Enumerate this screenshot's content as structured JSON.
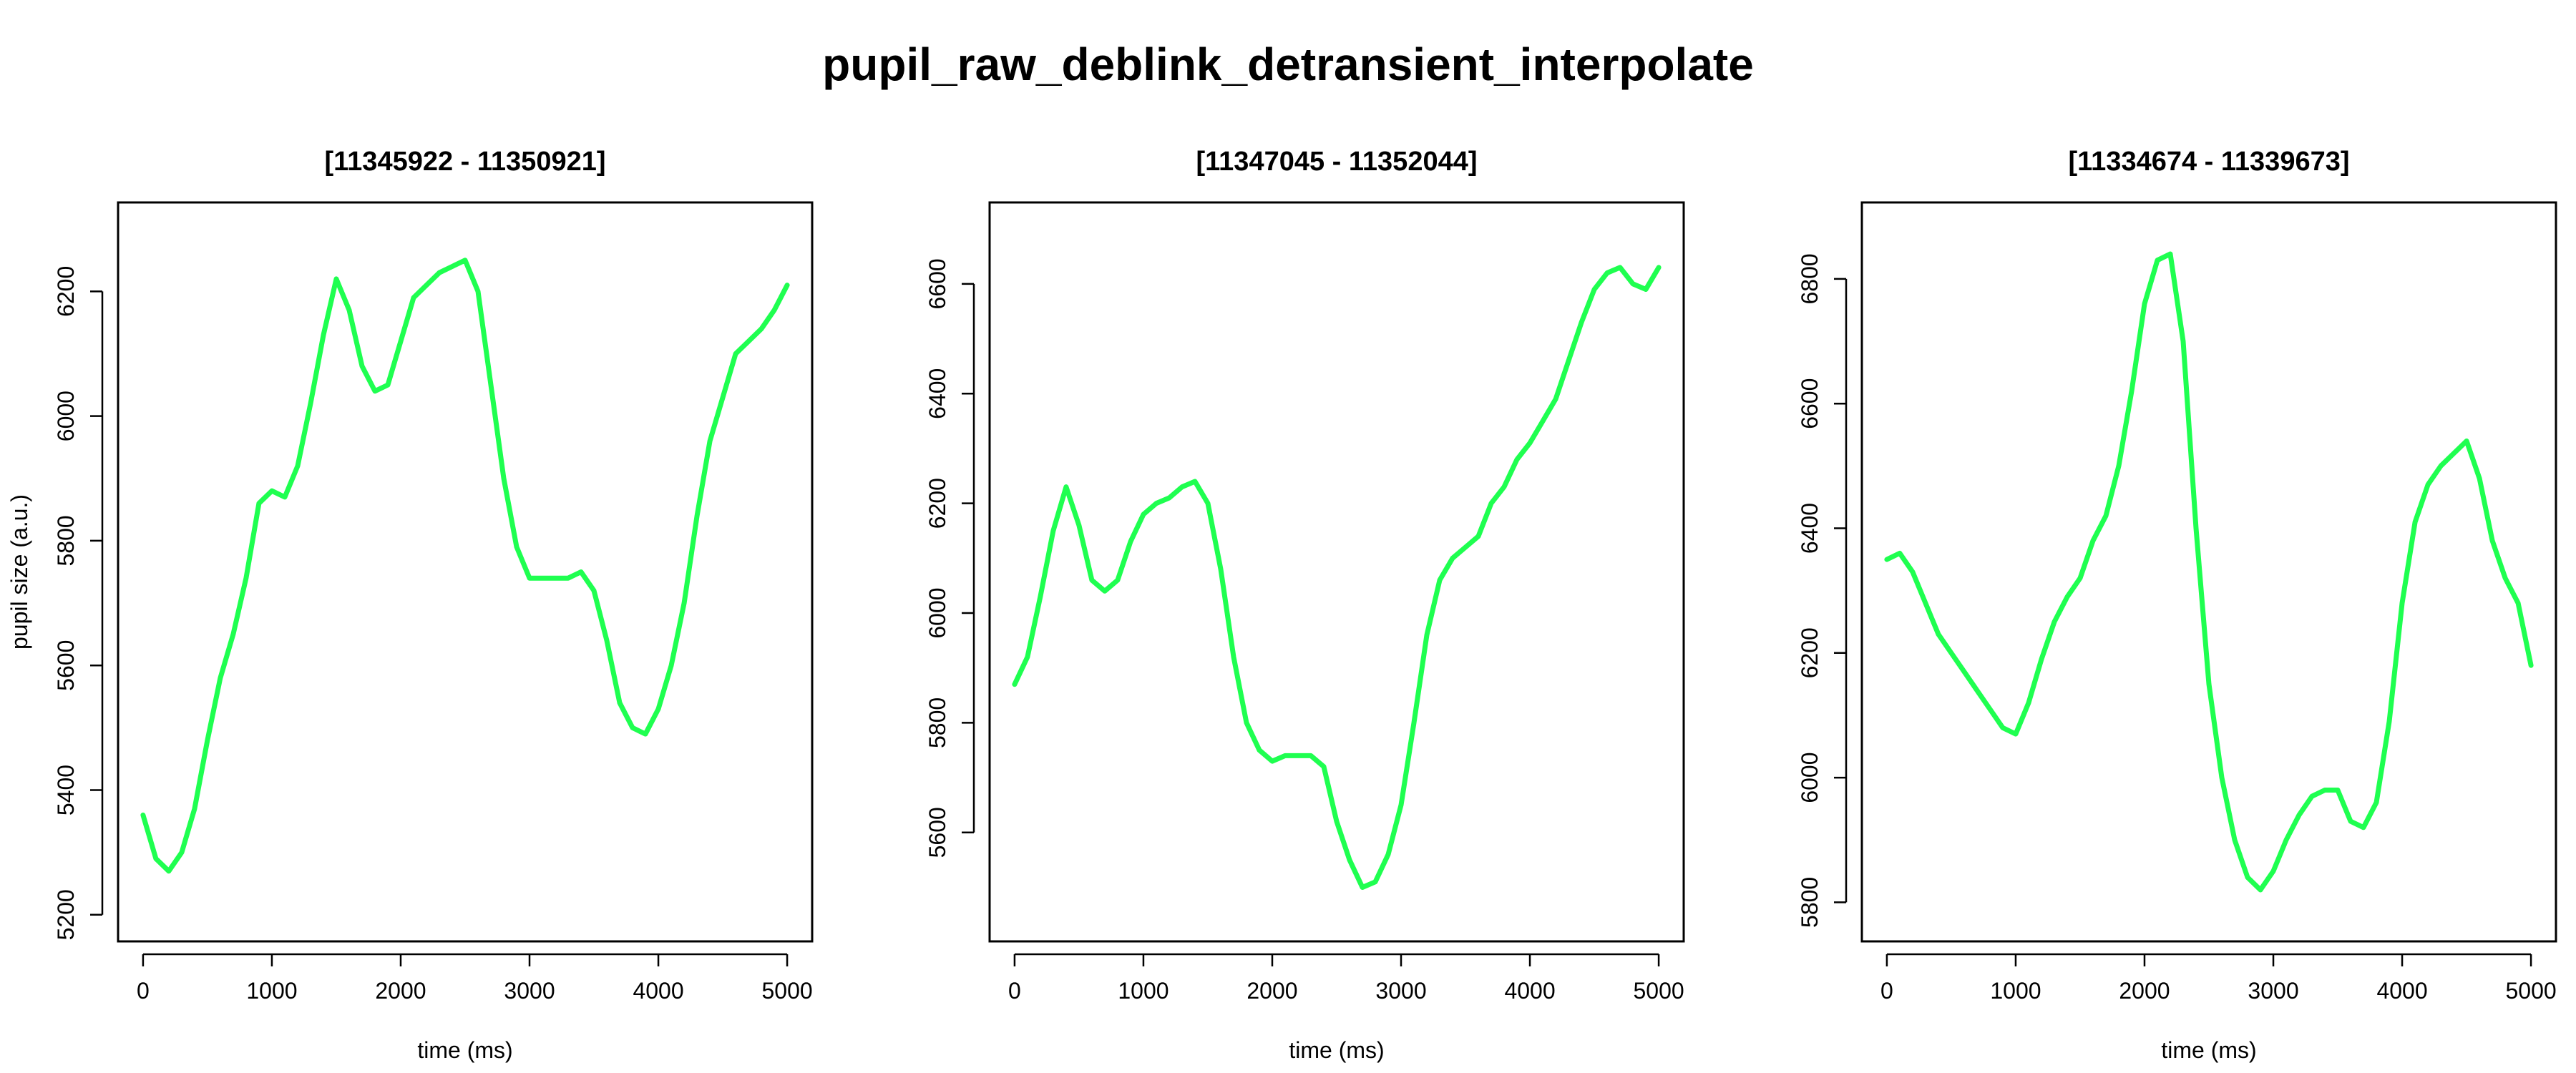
{
  "title": "pupil_raw_deblink_detransient_interpolate",
  "colors": {
    "series": "#1FFF50"
  },
  "chart_data": [
    {
      "type": "line",
      "title": "[11345922 - 11350921]",
      "xlabel": "time (ms)",
      "ylabel": "pupil size (a.u.)",
      "xlim": [
        0,
        5000
      ],
      "ylim": [
        5200,
        6300
      ],
      "xticks": [
        "0",
        "1000",
        "2000",
        "3000",
        "4000",
        "5000"
      ],
      "yticks": [
        "5200",
        "5400",
        "5600",
        "5800",
        "6000",
        "6200"
      ],
      "grid": false,
      "series": [
        {
          "x": [
            0,
            100,
            200,
            300,
            400,
            500,
            600,
            700,
            800,
            900,
            1000,
            1100,
            1200,
            1300,
            1400,
            1500,
            1600,
            1700,
            1800,
            1900,
            2000,
            2100,
            2200,
            2300,
            2400,
            2500,
            2600,
            2700,
            2800,
            2900,
            3000,
            3100,
            3200,
            3300,
            3400,
            3500,
            3600,
            3700,
            3800,
            3900,
            4000,
            4100,
            4200,
            4300,
            4400,
            4500,
            4600,
            4700,
            4800,
            4900,
            5000
          ],
          "y": [
            5360,
            5290,
            5270,
            5300,
            5370,
            5480,
            5580,
            5650,
            5740,
            5860,
            5880,
            5870,
            5920,
            6020,
            6130,
            6220,
            6170,
            6080,
            6040,
            6050,
            6120,
            6190,
            6210,
            6230,
            6240,
            6250,
            6200,
            6050,
            5900,
            5790,
            5740,
            5740,
            5740,
            5740,
            5750,
            5720,
            5640,
            5540,
            5500,
            5490,
            5530,
            5600,
            5700,
            5840,
            5960,
            6030,
            6100,
            6120,
            6140,
            6170,
            6210
          ]
        }
      ]
    },
    {
      "type": "line",
      "title": "[11347045 - 11352044]",
      "xlabel": "time (ms)",
      "ylabel": "",
      "xlim": [
        0,
        5000
      ],
      "ylim": [
        5450,
        6700
      ],
      "xticks": [
        "0",
        "1000",
        "2000",
        "3000",
        "4000",
        "5000"
      ],
      "yticks": [
        "5600",
        "5800",
        "6000",
        "6200",
        "6400",
        "6600"
      ],
      "grid": false,
      "series": [
        {
          "x": [
            0,
            100,
            200,
            300,
            400,
            500,
            600,
            700,
            800,
            900,
            1000,
            1100,
            1200,
            1300,
            1400,
            1500,
            1600,
            1700,
            1800,
            1900,
            2000,
            2100,
            2200,
            2300,
            2400,
            2500,
            2600,
            2700,
            2800,
            2900,
            3000,
            3100,
            3200,
            3300,
            3400,
            3500,
            3600,
            3700,
            3800,
            3900,
            4000,
            4100,
            4200,
            4300,
            4400,
            4500,
            4600,
            4700,
            4800,
            4900,
            5000
          ],
          "y": [
            5870,
            5920,
            6030,
            6150,
            6230,
            6160,
            6060,
            6040,
            6060,
            6130,
            6180,
            6200,
            6210,
            6230,
            6240,
            6200,
            6080,
            5920,
            5800,
            5750,
            5730,
            5740,
            5740,
            5740,
            5720,
            5620,
            5550,
            5500,
            5510,
            5560,
            5650,
            5800,
            5960,
            6060,
            6100,
            6120,
            6140,
            6200,
            6230,
            6280,
            6310,
            6350,
            6390,
            6460,
            6530,
            6590,
            6620,
            6630,
            6600,
            6590,
            6630
          ]
        }
      ]
    },
    {
      "type": "line",
      "title": "[11334674 - 11339673]",
      "xlabel": "time (ms)",
      "ylabel": "",
      "xlim": [
        0,
        5000
      ],
      "ylim": [
        5780,
        6880
      ],
      "xticks": [
        "0",
        "1000",
        "2000",
        "3000",
        "4000",
        "5000"
      ],
      "yticks": [
        "5800",
        "6000",
        "6200",
        "6400",
        "6600",
        "6800"
      ],
      "grid": false,
      "series": [
        {
          "x": [
            0,
            100,
            200,
            300,
            400,
            500,
            600,
            700,
            800,
            900,
            1000,
            1100,
            1200,
            1300,
            1400,
            1500,
            1600,
            1700,
            1800,
            1900,
            2000,
            2100,
            2200,
            2300,
            2400,
            2500,
            2600,
            2700,
            2800,
            2900,
            3000,
            3100,
            3200,
            3300,
            3400,
            3500,
            3600,
            3700,
            3800,
            3900,
            4000,
            4100,
            4200,
            4300,
            4400,
            4500,
            4600,
            4700,
            4800,
            4900,
            5000
          ],
          "y": [
            6350,
            6360,
            6330,
            6280,
            6230,
            6200,
            6170,
            6140,
            6110,
            6080,
            6070,
            6120,
            6190,
            6250,
            6290,
            6320,
            6380,
            6420,
            6500,
            6620,
            6760,
            6830,
            6840,
            6700,
            6400,
            6150,
            6000,
            5900,
            5840,
            5820,
            5850,
            5900,
            5940,
            5970,
            5980,
            5980,
            5930,
            5920,
            5960,
            6090,
            6280,
            6410,
            6470,
            6500,
            6520,
            6540,
            6480,
            6380,
            6320,
            6280,
            6180
          ]
        }
      ]
    }
  ]
}
